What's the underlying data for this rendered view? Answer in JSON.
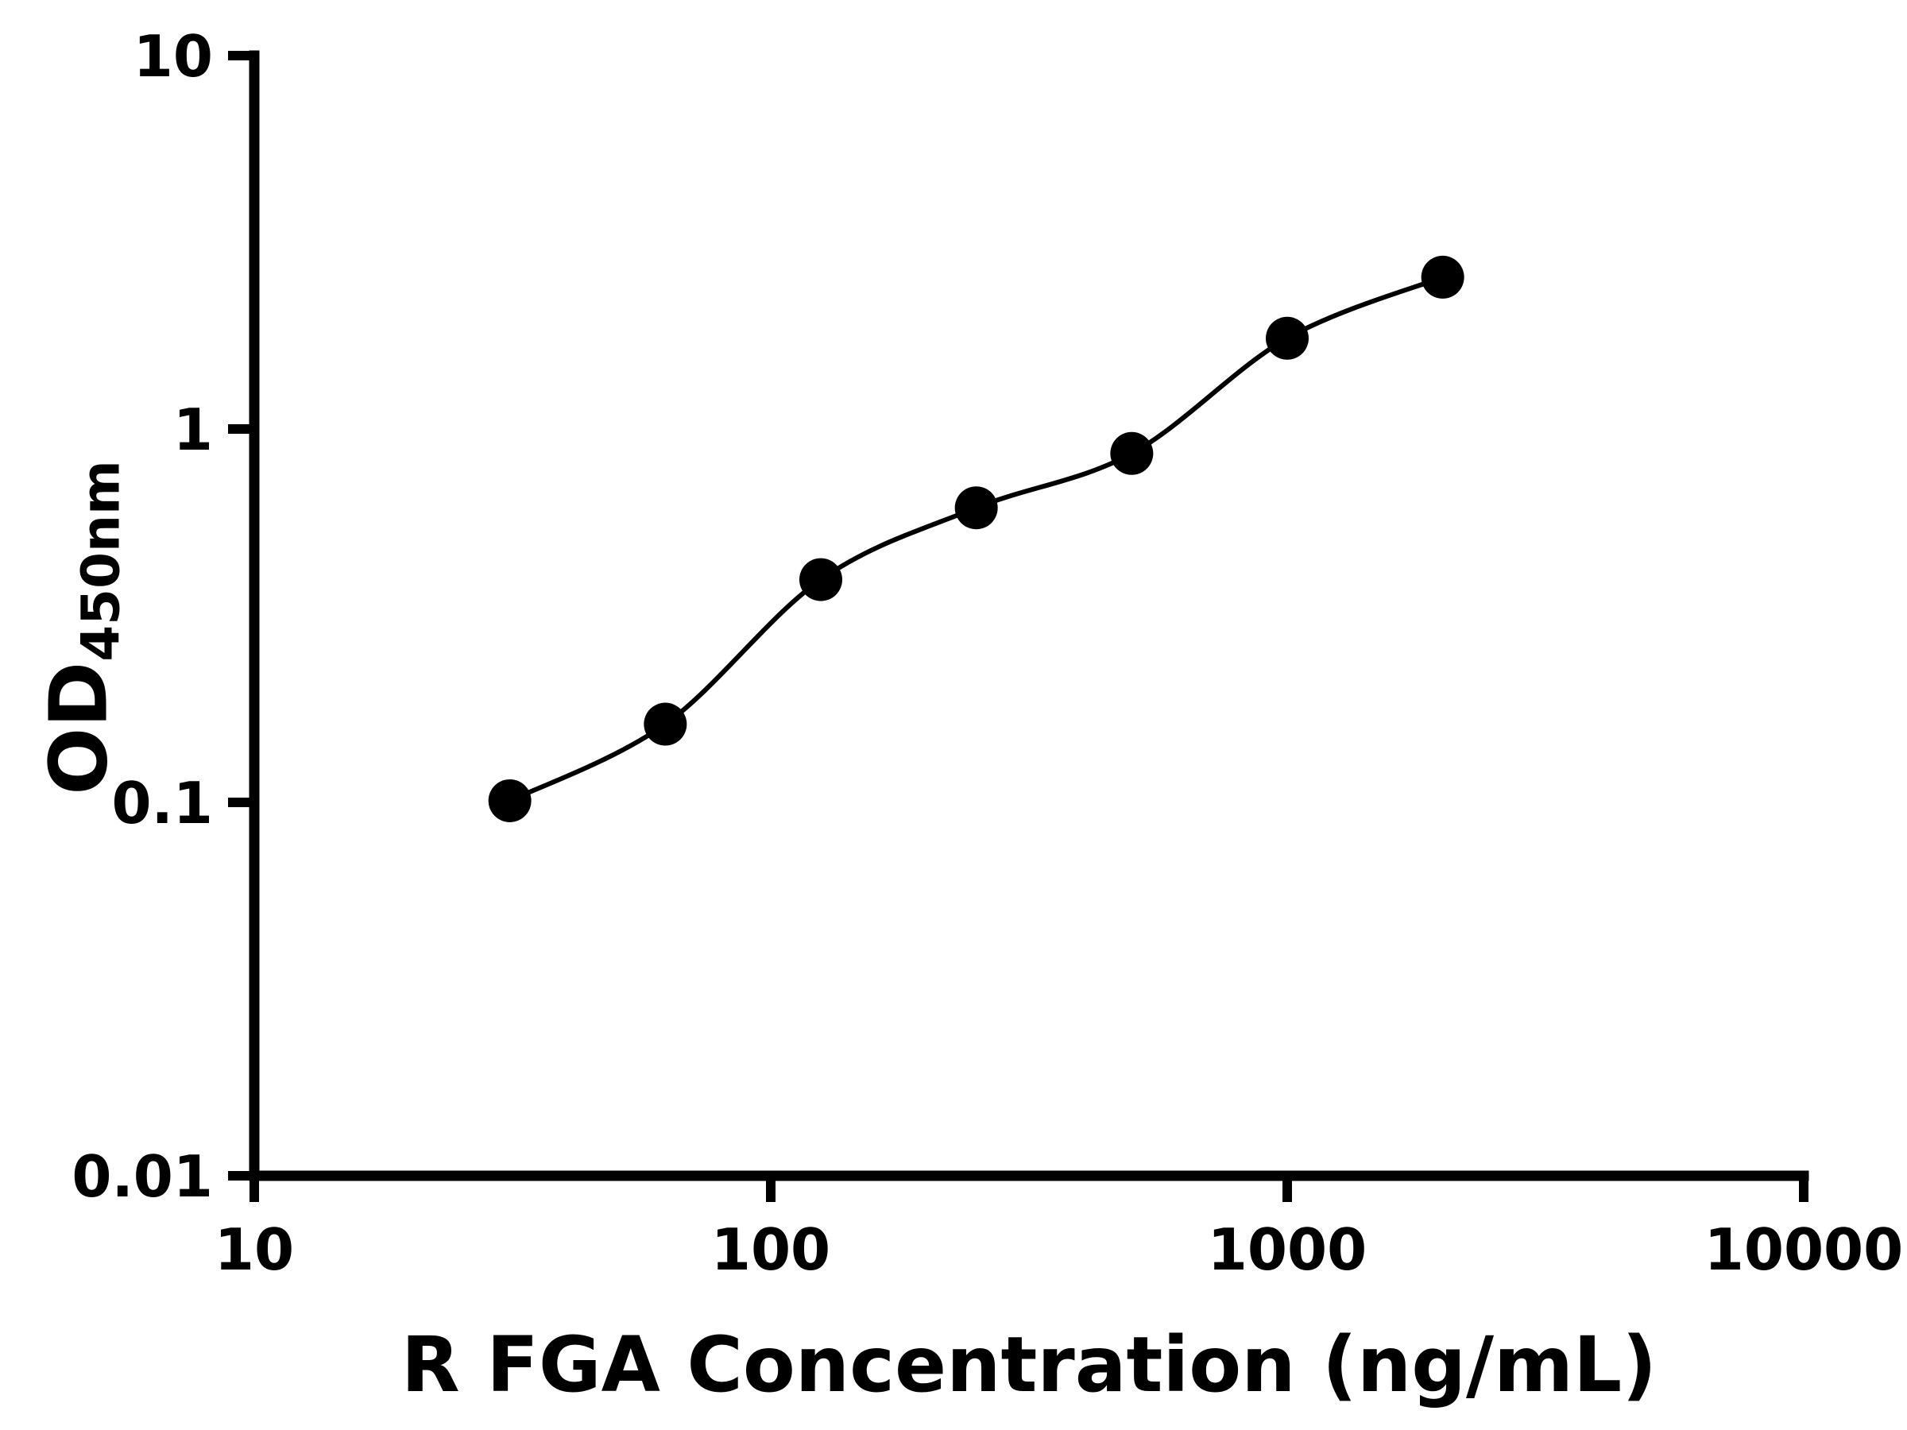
{
  "chart_data": {
    "type": "scatter",
    "title": "",
    "xlabel": "R FGA Concentration (ng/mL)",
    "ylabel": "OD450nm",
    "ylabel_main": "OD",
    "ylabel_sub": "450nm",
    "x": [
      31.25,
      62.5,
      125,
      250,
      500,
      1000,
      2000
    ],
    "y": [
      0.101,
      0.162,
      0.395,
      0.615,
      0.86,
      1.75,
      2.55
    ],
    "fit_line": true,
    "xscale": "log",
    "yscale": "log",
    "xlim": [
      10,
      10000
    ],
    "ylim": [
      0.01,
      10
    ],
    "x_tick_values": [
      10,
      100,
      1000,
      10000
    ],
    "x_tick_labels": [
      "10",
      "100",
      "1000",
      "10000"
    ],
    "y_tick_values": [
      0.01,
      0.1,
      1,
      10
    ],
    "y_tick_labels": [
      "0.01",
      "0.1",
      "1",
      "10"
    ],
    "grid": "off",
    "legend": "none",
    "marker_color": "#000000",
    "line_color": "#000000",
    "axis_color": "#000000",
    "background_color": "#ffffff"
  }
}
